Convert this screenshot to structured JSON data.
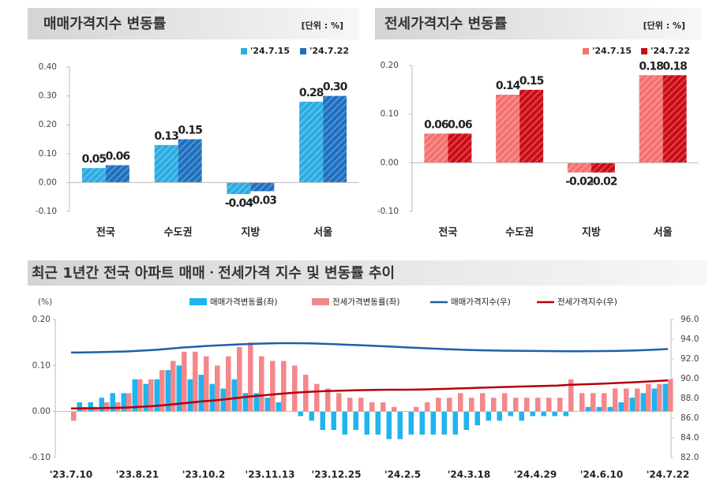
{
  "chart_data": [
    {
      "type": "bar",
      "title": "매매가격지수 변동률",
      "unit": "[단위 : %]",
      "hatch": true,
      "categories": [
        "전국",
        "수도권",
        "지방",
        "서울"
      ],
      "series": [
        {
          "name": "'24.7.15",
          "color": "#29abe2",
          "values": [
            0.05,
            0.13,
            -0.04,
            0.28
          ],
          "value_labels": [
            "0.05",
            "0.13",
            "-0.04",
            "0.28"
          ]
        },
        {
          "name": "'24.7.22",
          "color": "#1c6fc0",
          "values": [
            0.06,
            0.15,
            -0.03,
            0.3
          ],
          "value_labels": [
            "0.06",
            "0.15",
            "-0.03",
            "0.30"
          ]
        }
      ],
      "ylim": [
        -0.1,
        0.4
      ],
      "yticks": [
        {
          "value": -0.1,
          "label": "-0.10"
        },
        {
          "value": 0,
          "label": "0.00"
        },
        {
          "value": 0.1,
          "label": "0.10"
        },
        {
          "value": 0.2,
          "label": "0.20"
        },
        {
          "value": 0.3,
          "label": "0.30"
        },
        {
          "value": 0.4,
          "label": "0.40"
        }
      ]
    },
    {
      "type": "bar",
      "title": "전세가격지수 변동률",
      "unit": "[단위 : %]",
      "hatch": true,
      "categories": [
        "전국",
        "수도권",
        "지방",
        "서울"
      ],
      "series": [
        {
          "name": "'24.7.15",
          "color": "#f4706f",
          "values": [
            0.06,
            0.14,
            -0.02,
            0.18
          ],
          "value_labels": [
            "0.06",
            "0.14",
            "-0.02",
            "0.18"
          ]
        },
        {
          "name": "'24.7.22",
          "color": "#cc0a14",
          "values": [
            0.06,
            0.15,
            -0.02,
            0.18
          ],
          "value_labels": [
            "0.06",
            "0.15",
            "-0.02",
            "0.18"
          ]
        }
      ],
      "ylim": [
        -0.1,
        0.2
      ],
      "yticks": [
        {
          "value": -0.1,
          "label": "-0.10"
        },
        {
          "value": 0,
          "label": "0.00"
        },
        {
          "value": 0.1,
          "label": "0.10"
        },
        {
          "value": 0.2,
          "label": "0.20"
        }
      ]
    },
    {
      "type": "combo",
      "title": "최근 1년간 전국 아파트 매매ㆍ전세가격 지수 및 변동률 추이",
      "y_label": "(%)",
      "categories": [
        "'23.7.10",
        null,
        null,
        null,
        null,
        null,
        "'23.8.21",
        null,
        null,
        null,
        null,
        null,
        "'23.10.2",
        null,
        null,
        null,
        null,
        null,
        "'23.11.13",
        null,
        null,
        null,
        null,
        null,
        "'23.12.25",
        null,
        null,
        null,
        null,
        null,
        "'24.2.5",
        null,
        null,
        null,
        null,
        null,
        "'24.3.18",
        null,
        null,
        null,
        null,
        null,
        "'24.4.29",
        null,
        null,
        null,
        null,
        null,
        "'24.6.10",
        null,
        null,
        null,
        null,
        null,
        "'24.7.22"
      ],
      "series": [
        {
          "name": "매매가격변동률(좌)",
          "type": "bar",
          "color": "#1fb4ee",
          "values": [
            0.0,
            0.02,
            0.02,
            0.03,
            0.04,
            0.04,
            0.07,
            0.06,
            0.07,
            0.09,
            0.1,
            0.07,
            0.08,
            0.06,
            0.05,
            0.07,
            0.04,
            0.04,
            0.03,
            0.02,
            0.0,
            -0.01,
            -0.02,
            -0.04,
            -0.04,
            -0.05,
            -0.04,
            -0.05,
            -0.05,
            -0.06,
            -0.06,
            -0.05,
            -0.05,
            -0.05,
            -0.05,
            -0.05,
            -0.04,
            -0.03,
            -0.02,
            -0.02,
            -0.01,
            -0.02,
            -0.01,
            -0.01,
            -0.01,
            -0.01,
            0.0,
            0.01,
            0.01,
            0.01,
            0.02,
            0.03,
            0.04,
            0.05,
            0.06
          ]
        },
        {
          "name": "전세가격변동률(좌)",
          "type": "bar",
          "color": "#f4878b",
          "values": [
            -0.02,
            0.01,
            0.01,
            0.02,
            0.02,
            0.04,
            0.07,
            0.07,
            0.09,
            0.11,
            0.13,
            0.13,
            0.12,
            0.1,
            0.12,
            0.14,
            0.15,
            0.12,
            0.11,
            0.11,
            0.1,
            0.08,
            0.06,
            0.05,
            0.04,
            0.03,
            0.03,
            0.02,
            0.02,
            0.01,
            0.0,
            0.01,
            0.02,
            0.03,
            0.03,
            0.04,
            0.03,
            0.04,
            0.03,
            0.04,
            0.03,
            0.03,
            0.03,
            0.03,
            0.03,
            0.07,
            0.04,
            0.04,
            0.04,
            0.05,
            0.05,
            0.05,
            0.06,
            0.06,
            0.07
          ]
        },
        {
          "name": "매매가격지수(우)",
          "type": "line",
          "axis": "y2",
          "color": "#1f5fa8",
          "values": [
            92.65,
            92.66,
            92.68,
            92.7,
            92.73,
            92.76,
            92.82,
            92.88,
            92.95,
            93.05,
            93.15,
            93.22,
            93.3,
            93.36,
            93.41,
            93.47,
            93.51,
            93.55,
            93.58,
            93.6,
            93.6,
            93.59,
            93.57,
            93.53,
            93.49,
            93.44,
            93.4,
            93.35,
            93.3,
            93.25,
            93.19,
            93.14,
            93.09,
            93.04,
            92.99,
            92.95,
            92.91,
            92.88,
            92.86,
            92.84,
            92.83,
            92.82,
            92.81,
            92.8,
            92.79,
            92.78,
            92.78,
            92.79,
            92.8,
            92.81,
            92.83,
            92.86,
            92.9,
            92.95,
            93.01
          ]
        },
        {
          "name": "전세가격지수(우)",
          "type": "line",
          "axis": "y2",
          "color": "#b3000c",
          "values": [
            86.98,
            86.99,
            87.0,
            87.02,
            87.04,
            87.07,
            87.13,
            87.19,
            87.27,
            87.37,
            87.49,
            87.6,
            87.71,
            87.8,
            87.91,
            88.04,
            88.17,
            88.27,
            88.37,
            88.47,
            88.56,
            88.63,
            88.69,
            88.74,
            88.77,
            88.8,
            88.83,
            88.85,
            88.87,
            88.88,
            88.88,
            88.89,
            88.91,
            88.94,
            88.97,
            89.01,
            89.04,
            89.08,
            89.11,
            89.15,
            89.18,
            89.21,
            89.24,
            89.27,
            89.3,
            89.37,
            89.41,
            89.45,
            89.49,
            89.54,
            89.59,
            89.64,
            89.7,
            89.76,
            89.83
          ]
        }
      ],
      "ylim": [
        -0.1,
        0.2
      ],
      "yticks": [
        {
          "value": -0.1,
          "label": "-0.10"
        },
        {
          "value": 0,
          "label": "0.00"
        },
        {
          "value": 0.1,
          "label": "0.10"
        },
        {
          "value": 0.2,
          "label": "0.20"
        }
      ],
      "y2lim": [
        82,
        96
      ],
      "y2ticks": [
        {
          "value": 82,
          "label": "82.0"
        },
        {
          "value": 84,
          "label": "84.0"
        },
        {
          "value": 86,
          "label": "86.0"
        },
        {
          "value": 88,
          "label": "88.0"
        },
        {
          "value": 90,
          "label": "90.0"
        },
        {
          "value": 92,
          "label": "92.0"
        },
        {
          "value": 94,
          "label": "94.0"
        },
        {
          "value": 96,
          "label": "96.0"
        }
      ]
    }
  ]
}
